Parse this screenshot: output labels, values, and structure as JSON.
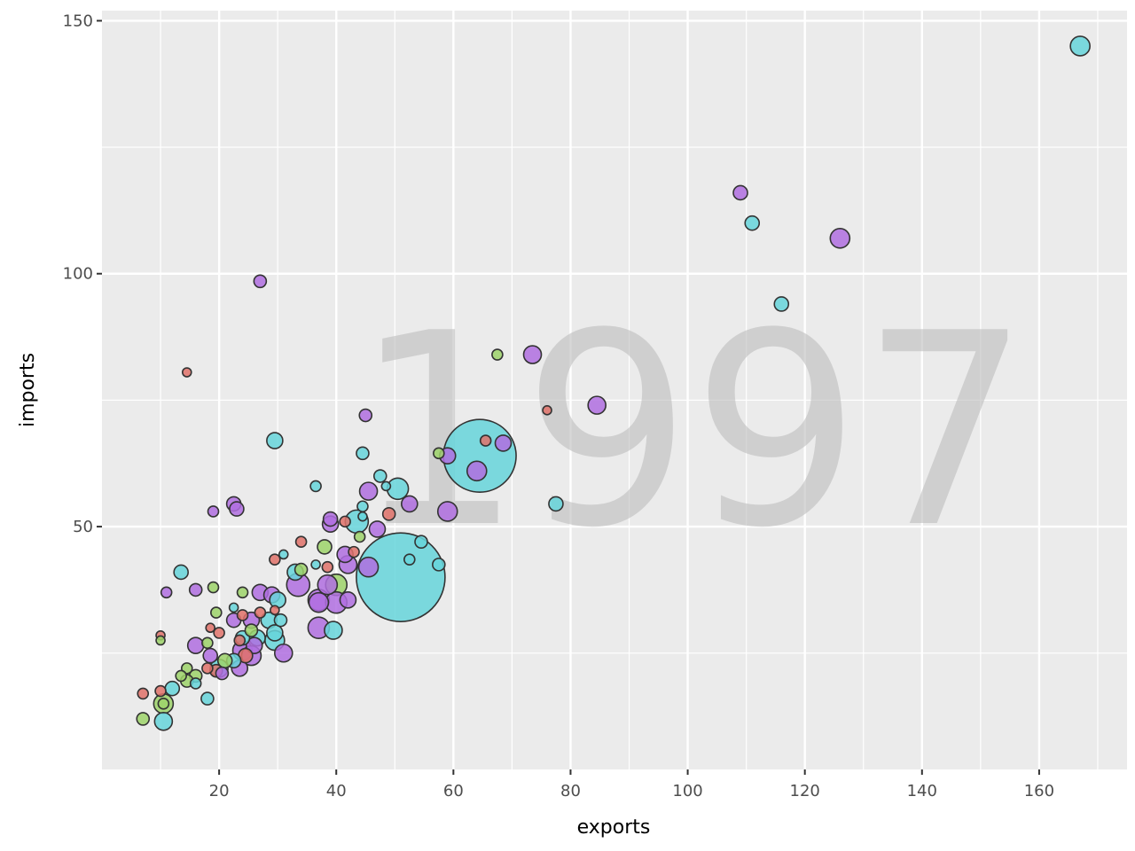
{
  "chart_data": {
    "type": "scatter",
    "watermark": "1997",
    "xlabel": "exports",
    "ylabel": "imports",
    "xlim": [
      0,
      175
    ],
    "ylim": [
      2,
      152
    ],
    "x_ticks": [
      20,
      40,
      60,
      80,
      100,
      120,
      140,
      160
    ],
    "y_ticks": [
      50,
      100,
      150
    ],
    "grid": true,
    "colors": {
      "red": "#e0726a",
      "green": "#9ed36a",
      "cyan": "#66d5da",
      "purple": "#b06fe0",
      "panel": "#ebebeb",
      "gridline": "#ffffff",
      "outline": "#333333"
    },
    "points": [
      {
        "x": 167,
        "y": 145,
        "r": 11,
        "c": "cyan"
      },
      {
        "x": 109,
        "y": 116,
        "r": 8,
        "c": "purple"
      },
      {
        "x": 111,
        "y": 110,
        "r": 8,
        "c": "cyan"
      },
      {
        "x": 126,
        "y": 107,
        "r": 11,
        "c": "purple"
      },
      {
        "x": 116,
        "y": 94,
        "r": 8,
        "c": "cyan"
      },
      {
        "x": 27,
        "y": 98.5,
        "r": 7,
        "c": "purple"
      },
      {
        "x": 14.5,
        "y": 80.5,
        "r": 5,
        "c": "red"
      },
      {
        "x": 67.5,
        "y": 84,
        "r": 6,
        "c": "green"
      },
      {
        "x": 73.5,
        "y": 84,
        "r": 10,
        "c": "purple"
      },
      {
        "x": 84.5,
        "y": 74,
        "r": 10,
        "c": "purple"
      },
      {
        "x": 76,
        "y": 73,
        "r": 5,
        "c": "red"
      },
      {
        "x": 45,
        "y": 72,
        "r": 7,
        "c": "purple"
      },
      {
        "x": 29.5,
        "y": 67,
        "r": 9,
        "c": "cyan"
      },
      {
        "x": 65.5,
        "y": 67,
        "r": 6,
        "c": "red"
      },
      {
        "x": 68.5,
        "y": 66.5,
        "r": 9,
        "c": "purple"
      },
      {
        "x": 64.5,
        "y": 64,
        "r": 41,
        "c": "cyan"
      },
      {
        "x": 59,
        "y": 64,
        "r": 9,
        "c": "purple"
      },
      {
        "x": 57.5,
        "y": 64.5,
        "r": 6,
        "c": "green"
      },
      {
        "x": 44.5,
        "y": 64.5,
        "r": 7,
        "c": "cyan"
      },
      {
        "x": 64,
        "y": 61,
        "r": 11,
        "c": "purple"
      },
      {
        "x": 47.5,
        "y": 60,
        "r": 7,
        "c": "cyan"
      },
      {
        "x": 36.5,
        "y": 58,
        "r": 6,
        "c": "cyan"
      },
      {
        "x": 48.5,
        "y": 58,
        "r": 5,
        "c": "cyan"
      },
      {
        "x": 50.5,
        "y": 57.5,
        "r": 12,
        "c": "cyan"
      },
      {
        "x": 45.5,
        "y": 57,
        "r": 10,
        "c": "purple"
      },
      {
        "x": 22.5,
        "y": 54.5,
        "r": 8,
        "c": "purple"
      },
      {
        "x": 23,
        "y": 53.5,
        "r": 8,
        "c": "purple"
      },
      {
        "x": 52.5,
        "y": 54.5,
        "r": 9,
        "c": "purple"
      },
      {
        "x": 59,
        "y": 53,
        "r": 11,
        "c": "purple"
      },
      {
        "x": 77.5,
        "y": 54.5,
        "r": 8,
        "c": "cyan"
      },
      {
        "x": 44.5,
        "y": 54,
        "r": 6,
        "c": "cyan"
      },
      {
        "x": 49,
        "y": 52.5,
        "r": 7,
        "c": "red"
      },
      {
        "x": 19,
        "y": 53,
        "r": 6,
        "c": "purple"
      },
      {
        "x": 44.5,
        "y": 52,
        "r": 5,
        "c": "cyan"
      },
      {
        "x": 39,
        "y": 51.5,
        "r": 8,
        "c": "purple"
      },
      {
        "x": 41.5,
        "y": 51,
        "r": 6,
        "c": "red"
      },
      {
        "x": 39,
        "y": 50.5,
        "r": 9,
        "c": "purple"
      },
      {
        "x": 43.5,
        "y": 51,
        "r": 13,
        "c": "cyan"
      },
      {
        "x": 47,
        "y": 49.5,
        "r": 9,
        "c": "purple"
      },
      {
        "x": 44,
        "y": 48,
        "r": 6,
        "c": "green"
      },
      {
        "x": 54.5,
        "y": 47,
        "r": 7,
        "c": "cyan"
      },
      {
        "x": 34,
        "y": 47,
        "r": 6,
        "c": "red"
      },
      {
        "x": 38,
        "y": 46,
        "r": 8,
        "c": "green"
      },
      {
        "x": 43,
        "y": 45,
        "r": 6,
        "c": "red"
      },
      {
        "x": 31,
        "y": 44.5,
        "r": 5,
        "c": "cyan"
      },
      {
        "x": 41.5,
        "y": 44.5,
        "r": 9,
        "c": "purple"
      },
      {
        "x": 29.5,
        "y": 43.5,
        "r": 6,
        "c": "red"
      },
      {
        "x": 52.5,
        "y": 43.5,
        "r": 6,
        "c": "cyan"
      },
      {
        "x": 36.5,
        "y": 42.5,
        "r": 5,
        "c": "cyan"
      },
      {
        "x": 57.5,
        "y": 42.5,
        "r": 7,
        "c": "cyan"
      },
      {
        "x": 42,
        "y": 42.5,
        "r": 10,
        "c": "purple"
      },
      {
        "x": 45.5,
        "y": 42,
        "r": 11,
        "c": "purple"
      },
      {
        "x": 38.5,
        "y": 42,
        "r": 6,
        "c": "red"
      },
      {
        "x": 34,
        "y": 41.5,
        "r": 7,
        "c": "green"
      },
      {
        "x": 13.5,
        "y": 41,
        "r": 8,
        "c": "cyan"
      },
      {
        "x": 33,
        "y": 41,
        "r": 9,
        "c": "cyan"
      },
      {
        "x": 51,
        "y": 40,
        "r": 50,
        "c": "cyan"
      },
      {
        "x": 33.5,
        "y": 38.5,
        "r": 13,
        "c": "purple"
      },
      {
        "x": 38.5,
        "y": 38.5,
        "r": 11,
        "c": "purple"
      },
      {
        "x": 40,
        "y": 38.5,
        "r": 12,
        "c": "green"
      },
      {
        "x": 19,
        "y": 38,
        "r": 6,
        "c": "green"
      },
      {
        "x": 16,
        "y": 37.5,
        "r": 7,
        "c": "purple"
      },
      {
        "x": 11,
        "y": 37,
        "r": 6,
        "c": "purple"
      },
      {
        "x": 24,
        "y": 37,
        "r": 6,
        "c": "green"
      },
      {
        "x": 27,
        "y": 37,
        "r": 9,
        "c": "purple"
      },
      {
        "x": 29,
        "y": 36.5,
        "r": 9,
        "c": "purple"
      },
      {
        "x": 37,
        "y": 35.5,
        "r": 12,
        "c": "purple"
      },
      {
        "x": 30,
        "y": 35.5,
        "r": 9,
        "c": "cyan"
      },
      {
        "x": 42,
        "y": 35.5,
        "r": 9,
        "c": "purple"
      },
      {
        "x": 37,
        "y": 35,
        "r": 11,
        "c": "purple"
      },
      {
        "x": 40,
        "y": 35,
        "r": 12,
        "c": "purple"
      },
      {
        "x": 22.5,
        "y": 34,
        "r": 5,
        "c": "cyan"
      },
      {
        "x": 29.5,
        "y": 33.5,
        "r": 5,
        "c": "red"
      },
      {
        "x": 19.5,
        "y": 33,
        "r": 6,
        "c": "green"
      },
      {
        "x": 27,
        "y": 33,
        "r": 6,
        "c": "red"
      },
      {
        "x": 24,
        "y": 32.5,
        "r": 6,
        "c": "red"
      },
      {
        "x": 22.5,
        "y": 31.5,
        "r": 8,
        "c": "purple"
      },
      {
        "x": 25.5,
        "y": 31.5,
        "r": 9,
        "c": "purple"
      },
      {
        "x": 28.5,
        "y": 31.5,
        "r": 9,
        "c": "cyan"
      },
      {
        "x": 30.5,
        "y": 31.5,
        "r": 7,
        "c": "cyan"
      },
      {
        "x": 18.5,
        "y": 30,
        "r": 5,
        "c": "red"
      },
      {
        "x": 37,
        "y": 30,
        "r": 12,
        "c": "purple"
      },
      {
        "x": 39.5,
        "y": 29.5,
        "r": 10,
        "c": "cyan"
      },
      {
        "x": 25.5,
        "y": 29.5,
        "r": 7,
        "c": "green"
      },
      {
        "x": 20,
        "y": 29,
        "r": 6,
        "c": "red"
      },
      {
        "x": 29.5,
        "y": 29,
        "r": 9,
        "c": "cyan"
      },
      {
        "x": 10,
        "y": 28.5,
        "r": 5,
        "c": "red"
      },
      {
        "x": 24,
        "y": 28,
        "r": 8,
        "c": "cyan"
      },
      {
        "x": 26.5,
        "y": 28,
        "r": 9,
        "c": "cyan"
      },
      {
        "x": 29.5,
        "y": 27.5,
        "r": 11,
        "c": "cyan"
      },
      {
        "x": 10,
        "y": 27.5,
        "r": 5,
        "c": "green"
      },
      {
        "x": 23.5,
        "y": 27.5,
        "r": 6,
        "c": "red"
      },
      {
        "x": 16,
        "y": 26.5,
        "r": 9,
        "c": "purple"
      },
      {
        "x": 18,
        "y": 27,
        "r": 6,
        "c": "green"
      },
      {
        "x": 26,
        "y": 26.5,
        "r": 9,
        "c": "purple"
      },
      {
        "x": 31,
        "y": 25,
        "r": 10,
        "c": "purple"
      },
      {
        "x": 24,
        "y": 25.5,
        "r": 11,
        "c": "purple"
      },
      {
        "x": 25.5,
        "y": 24.5,
        "r": 11,
        "c": "purple"
      },
      {
        "x": 24.5,
        "y": 24.5,
        "r": 8,
        "c": "red"
      },
      {
        "x": 18.5,
        "y": 24.5,
        "r": 8,
        "c": "purple"
      },
      {
        "x": 22.5,
        "y": 23.5,
        "r": 8,
        "c": "cyan"
      },
      {
        "x": 21,
        "y": 23.5,
        "r": 8,
        "c": "green"
      },
      {
        "x": 14.5,
        "y": 22,
        "r": 6,
        "c": "green"
      },
      {
        "x": 18,
        "y": 22,
        "r": 6,
        "c": "red"
      },
      {
        "x": 20,
        "y": 22,
        "r": 10,
        "c": "cyan"
      },
      {
        "x": 23.5,
        "y": 22,
        "r": 9,
        "c": "purple"
      },
      {
        "x": 19.5,
        "y": 21.5,
        "r": 7,
        "c": "red"
      },
      {
        "x": 20.5,
        "y": 21,
        "r": 7,
        "c": "purple"
      },
      {
        "x": 13.5,
        "y": 20.5,
        "r": 6,
        "c": "green"
      },
      {
        "x": 16,
        "y": 20.5,
        "r": 7,
        "c": "green"
      },
      {
        "x": 14.5,
        "y": 19.5,
        "r": 7,
        "c": "green"
      },
      {
        "x": 16,
        "y": 19,
        "r": 6,
        "c": "cyan"
      },
      {
        "x": 12,
        "y": 18,
        "r": 8,
        "c": "cyan"
      },
      {
        "x": 10,
        "y": 17.5,
        "r": 6,
        "c": "red"
      },
      {
        "x": 7,
        "y": 17,
        "r": 6,
        "c": "red"
      },
      {
        "x": 18,
        "y": 16,
        "r": 7,
        "c": "cyan"
      },
      {
        "x": 10.5,
        "y": 15,
        "r": 11,
        "c": "green"
      },
      {
        "x": 10.5,
        "y": 15,
        "r": 6,
        "c": "green"
      },
      {
        "x": 7,
        "y": 12,
        "r": 7,
        "c": "green"
      },
      {
        "x": 10.5,
        "y": 11.5,
        "r": 10,
        "c": "cyan"
      }
    ]
  }
}
